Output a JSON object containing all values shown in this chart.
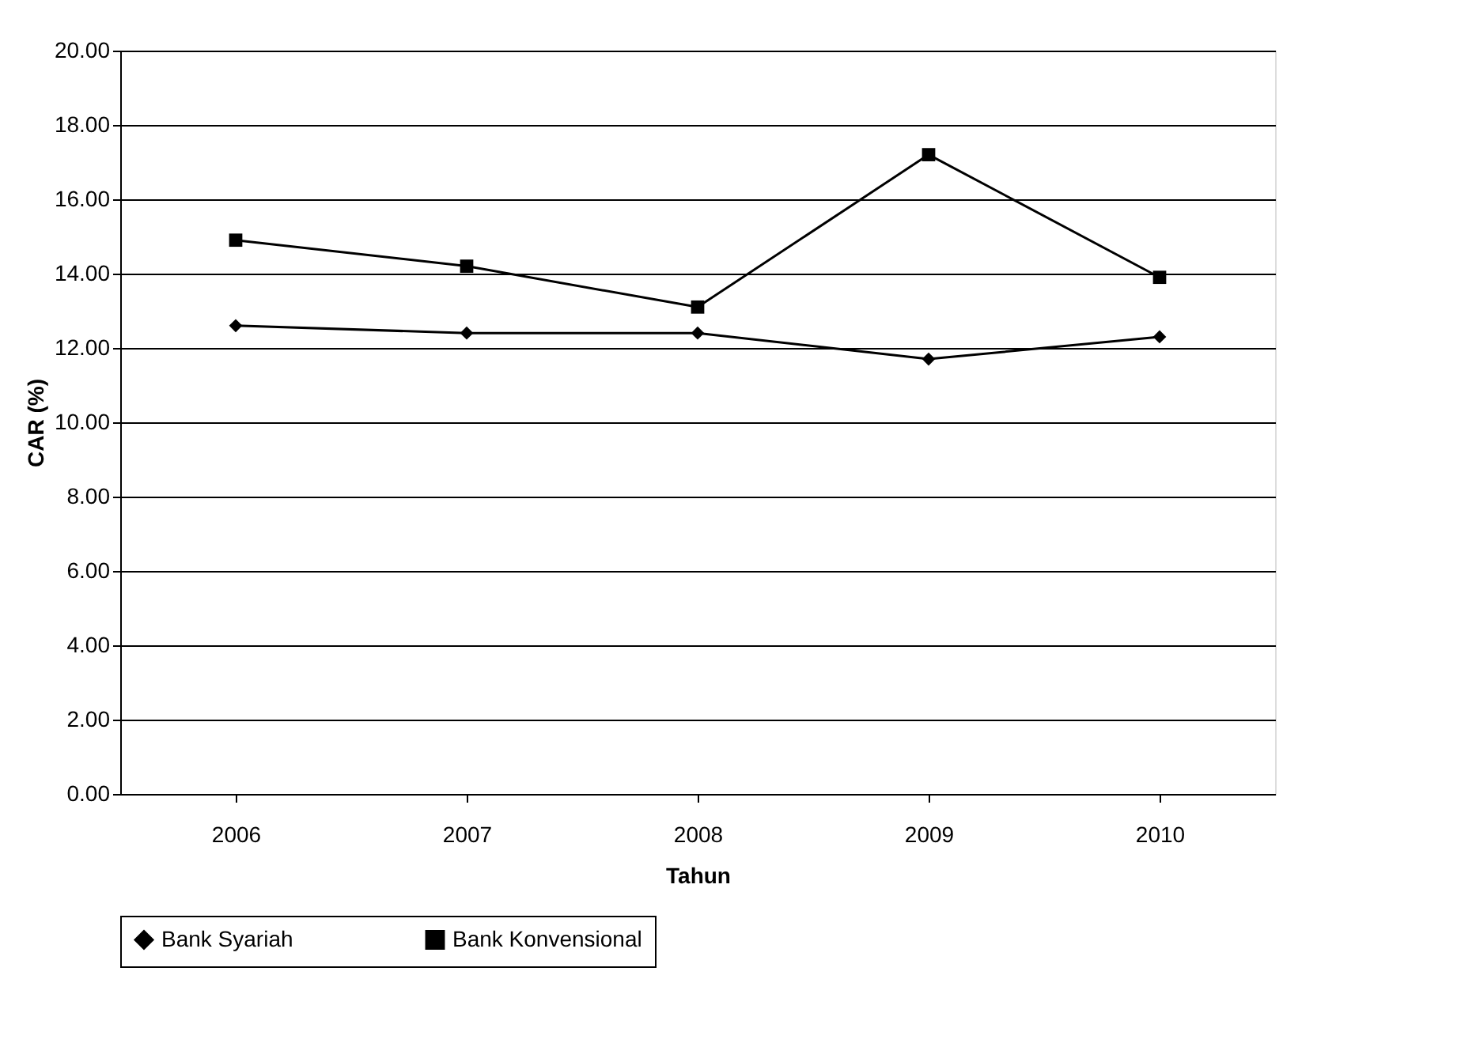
{
  "chart_data": {
    "type": "line",
    "xlabel": "Tahun",
    "ylabel": "CAR (%)",
    "categories": [
      "2006",
      "2007",
      "2008",
      "2009",
      "2010"
    ],
    "series": [
      {
        "name": "Bank Syariah",
        "color": "#000000",
        "marker": "diamond",
        "values": [
          12.6,
          12.4,
          12.4,
          11.7,
          12.3
        ]
      },
      {
        "name": "Bank Konvensional",
        "color": "#000000",
        "marker": "square",
        "values": [
          14.9,
          14.2,
          13.1,
          17.2,
          13.9
        ]
      }
    ],
    "ylim": [
      0,
      20
    ],
    "yticks": [
      {
        "value": 0,
        "label": "0.00"
      },
      {
        "value": 2,
        "label": "2.00"
      },
      {
        "value": 4,
        "label": "4.00"
      },
      {
        "value": 6,
        "label": "6.00"
      },
      {
        "value": 8,
        "label": "8.00"
      },
      {
        "value": 10,
        "label": "10.00"
      },
      {
        "value": 12,
        "label": "12.00"
      },
      {
        "value": 14,
        "label": "14.00"
      },
      {
        "value": 16,
        "label": "16.00"
      },
      {
        "value": 18,
        "label": "18.00"
      },
      {
        "value": 20,
        "label": "20.00"
      }
    ],
    "grid": "y",
    "legend": "bottom",
    "line_style": "solid"
  }
}
